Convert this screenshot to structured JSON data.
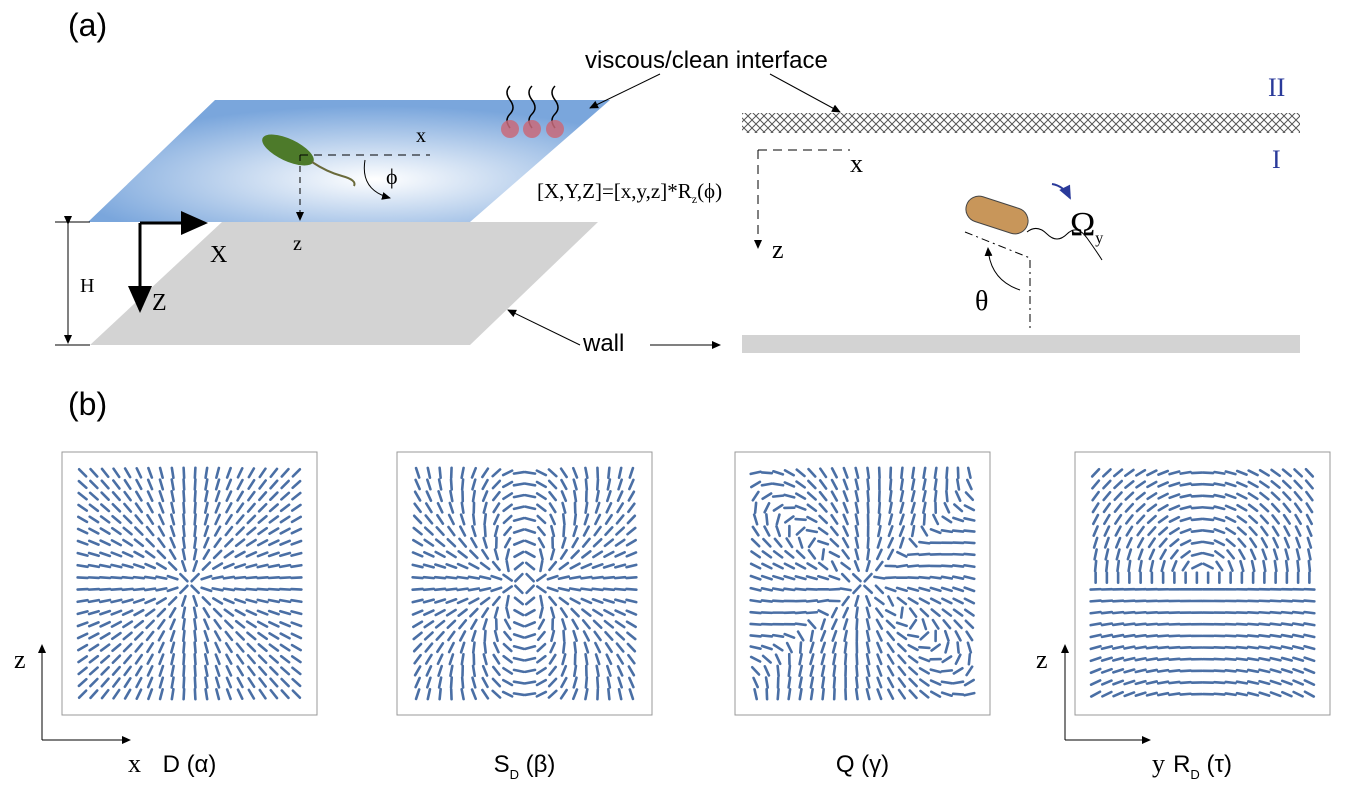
{
  "panel_a": {
    "label": "(a)",
    "interface_label": "viscous/clean interface",
    "region_upper": "II",
    "region_lower": "I",
    "body_axis_x": "x",
    "angle_phi": "ϕ",
    "body_axis_z": "z",
    "lab_axis_X": "X",
    "lab_axis_Z": "Z",
    "height": "H",
    "transform": {
      "main": "[X,Y,Z]=[x,y,z]*R",
      "sub": "z",
      "rest": "(ϕ)"
    },
    "wall_label": "wall",
    "side_axis_x": "x",
    "side_axis_z": "z",
    "rotation": {
      "main": "Ω",
      "sub": "y"
    },
    "angle_theta": "θ"
  },
  "panel_b": {
    "label": "(b)",
    "plots": [
      {
        "main": "D (α)"
      },
      {
        "main": "S",
        "sub": "D",
        "rest": " (β)"
      },
      {
        "main": "Q (γ)"
      },
      {
        "main": "R",
        "sub": "D",
        "rest": " (τ)"
      }
    ],
    "axes_left": {
      "vertical": "z",
      "horizontal": "x"
    },
    "axes_right": {
      "vertical": "z",
      "horizontal": "y"
    }
  }
}
